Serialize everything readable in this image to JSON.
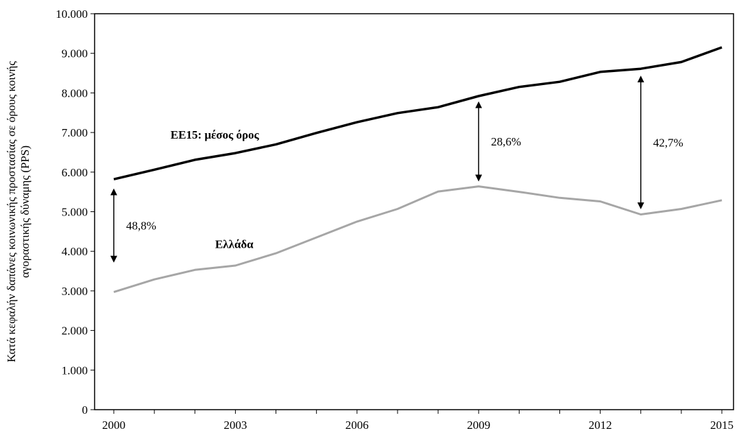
{
  "chart_data": {
    "type": "line",
    "title": "",
    "ylabel_lines": [
      "Κατά κεφαλήν δαπάνες κοινωνικής προστασίας σε όρους κοινής",
      "αγοραστικής δύναμης (PPS)"
    ],
    "xlabel": "",
    "x": [
      2000,
      2001,
      2002,
      2003,
      2004,
      2005,
      2006,
      2007,
      2008,
      2009,
      2010,
      2011,
      2012,
      2013,
      2014,
      2015
    ],
    "x_tick_labels": [
      "2000",
      "2003",
      "2006",
      "2009",
      "2012",
      "2015"
    ],
    "y_tick_labels": [
      "0",
      "1.000",
      "2.000",
      "3.000",
      "4.000",
      "5.000",
      "6.000",
      "7.000",
      "8.000",
      "9.000",
      "10.000"
    ],
    "ylim": [
      0,
      10000
    ],
    "xlim": [
      2000,
      2015
    ],
    "grid": false,
    "series": [
      {
        "name": "ΕΕ15: μέσος όρος",
        "color": "#000000",
        "values": [
          5820,
          6060,
          6310,
          6480,
          6700,
          6990,
          7260,
          7490,
          7640,
          7920,
          8150,
          8280,
          8530,
          8610,
          8780,
          9150
        ]
      },
      {
        "name": "Ελλάδα",
        "color": "#a6a6a6",
        "values": [
          2970,
          3290,
          3530,
          3640,
          3950,
          4350,
          4750,
          5070,
          5510,
          5640,
          5500,
          5350,
          5260,
          4930,
          5070,
          5290
        ]
      }
    ],
    "annotations": [
      {
        "text": "48,8%",
        "x": 2000,
        "from": 5500,
        "to": 3800
      },
      {
        "text": "28,6%",
        "x": 2009,
        "from": 7700,
        "to": 5850
      },
      {
        "text": "42,7%",
        "x": 2013,
        "from": 8350,
        "to": 5150
      }
    ]
  }
}
